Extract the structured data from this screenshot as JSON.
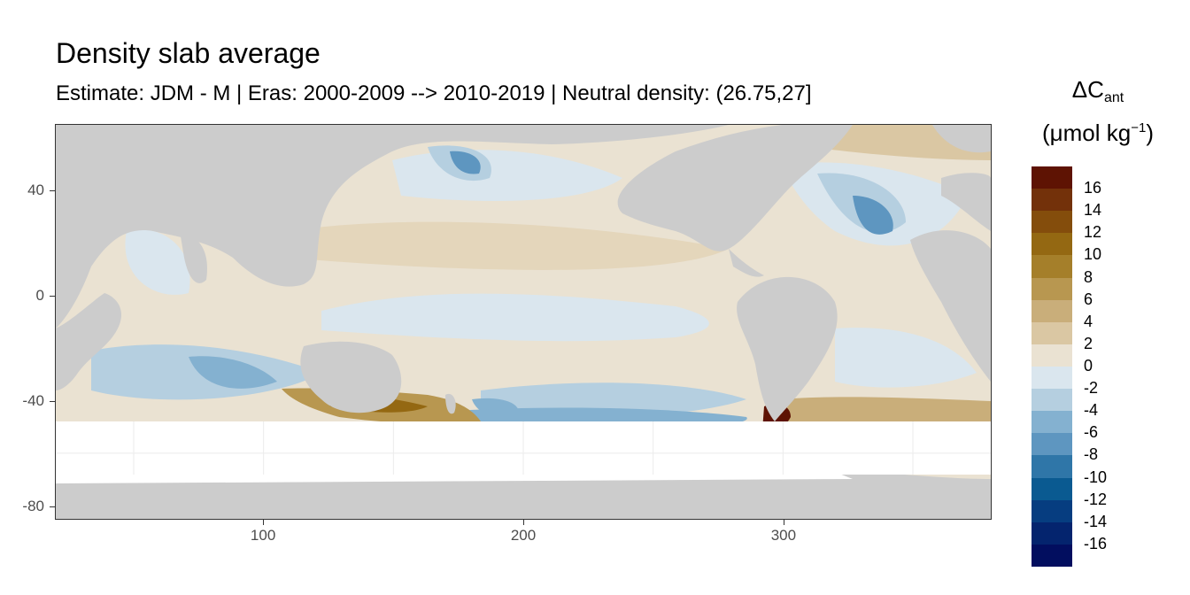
{
  "title": "Density slab average",
  "subtitle": "Estimate: JDM - M | Eras: 2000-2009 --> 2010-2019 | Neutral density: (26.75,27]",
  "map": {
    "x_axis": {
      "ticks": [
        "100",
        "200",
        "300"
      ],
      "tick_values": [
        100,
        200,
        300
      ],
      "range": [
        20,
        380
      ]
    },
    "y_axis": {
      "ticks": [
        "40",
        "0",
        "-40",
        "-80"
      ],
      "tick_values": [
        40,
        0,
        -40,
        -80
      ],
      "range": [
        -85,
        65
      ]
    },
    "land_color": "#cccccc",
    "no_data_color": "#ffffff"
  },
  "legend": {
    "title_main": "ΔC",
    "title_sub": "ant",
    "unit_prefix": "(μmol kg",
    "unit_sup": "−1",
    "unit_suffix": ")",
    "labels": [
      "16",
      "14",
      "12",
      "10",
      "8",
      "6",
      "4",
      "2",
      "0",
      "-2",
      "-4",
      "-6",
      "-8",
      "-10",
      "-12",
      "-14",
      "-16"
    ],
    "colors": [
      "#5e1303",
      "#73310a",
      "#844d0c",
      "#946812",
      "#a57f2a",
      "#b89750",
      "#c9ae7a",
      "#dac7a3",
      "#eae2d2",
      "#dae6ee",
      "#b5cfe0",
      "#84b1d0",
      "#5e96c0",
      "#2f76a8",
      "#0a5a91",
      "#063d80",
      "#04246e",
      "#020e5f"
    ]
  }
}
